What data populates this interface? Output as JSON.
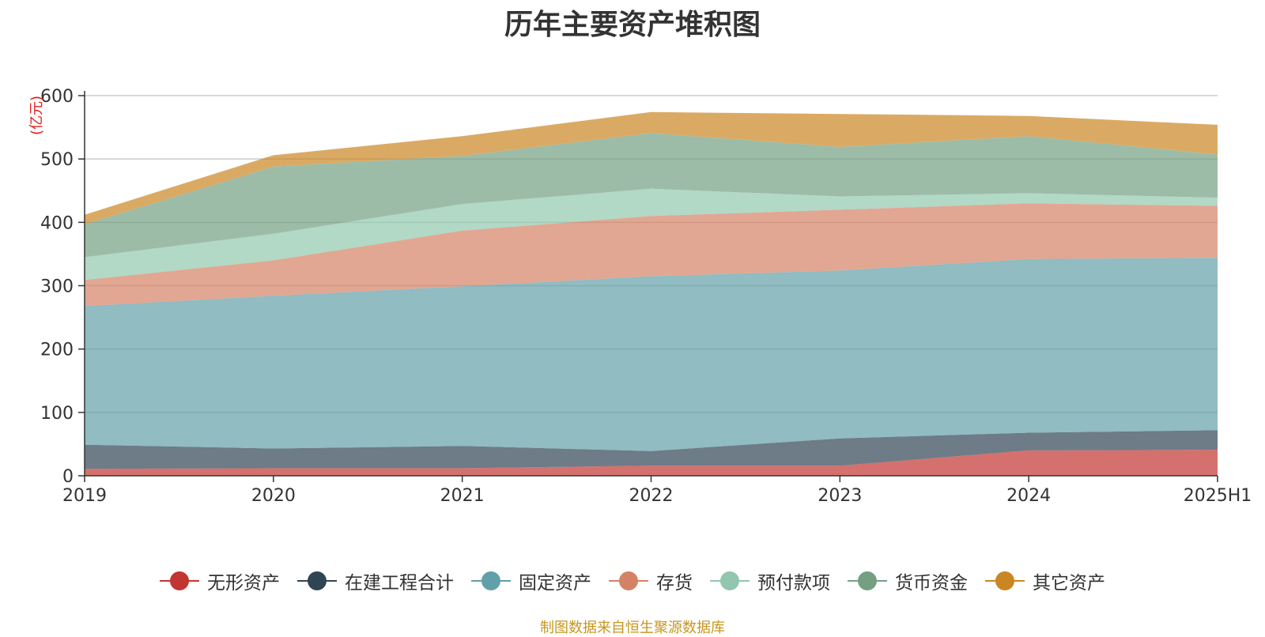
{
  "chart_data": {
    "type": "area",
    "stacked": true,
    "title": "历年主要资产堆积图",
    "unit_label": "(亿元)",
    "categories": [
      "2019",
      "2020",
      "2021",
      "2022",
      "2023",
      "2024",
      "2025H1"
    ],
    "y_ticks": [
      "0",
      "100",
      "200",
      "300",
      "400",
      "500",
      "600"
    ],
    "ylim": [
      0,
      600
    ],
    "grid": true,
    "legend_position": "bottom",
    "series": [
      {
        "name": "无形资产",
        "color": "#c23531",
        "values": [
          11,
          12,
          12,
          16,
          16,
          40,
          41
        ]
      },
      {
        "name": "在建工程合计",
        "color": "#2f4554",
        "values": [
          38,
          31,
          35,
          23,
          43,
          28,
          31
        ]
      },
      {
        "name": "固定资产",
        "color": "#61a0a8",
        "values": [
          219,
          241,
          252,
          276,
          265,
          274,
          272
        ]
      },
      {
        "name": "存货",
        "color": "#d48265",
        "values": [
          41,
          56,
          88,
          95,
          96,
          88,
          82
        ]
      },
      {
        "name": "预付款项",
        "color": "#91c7ae",
        "values": [
          36,
          42,
          42,
          43,
          21,
          16,
          13
        ]
      },
      {
        "name": "货币资金",
        "color": "#749f83",
        "values": [
          52,
          106,
          76,
          88,
          78,
          90,
          68
        ]
      },
      {
        "name": "其它资产",
        "color": "#ca8622",
        "values": [
          15,
          18,
          31,
          33,
          52,
          32,
          47
        ]
      }
    ],
    "source_note": "制图数据来自恒生聚源数据库"
  }
}
